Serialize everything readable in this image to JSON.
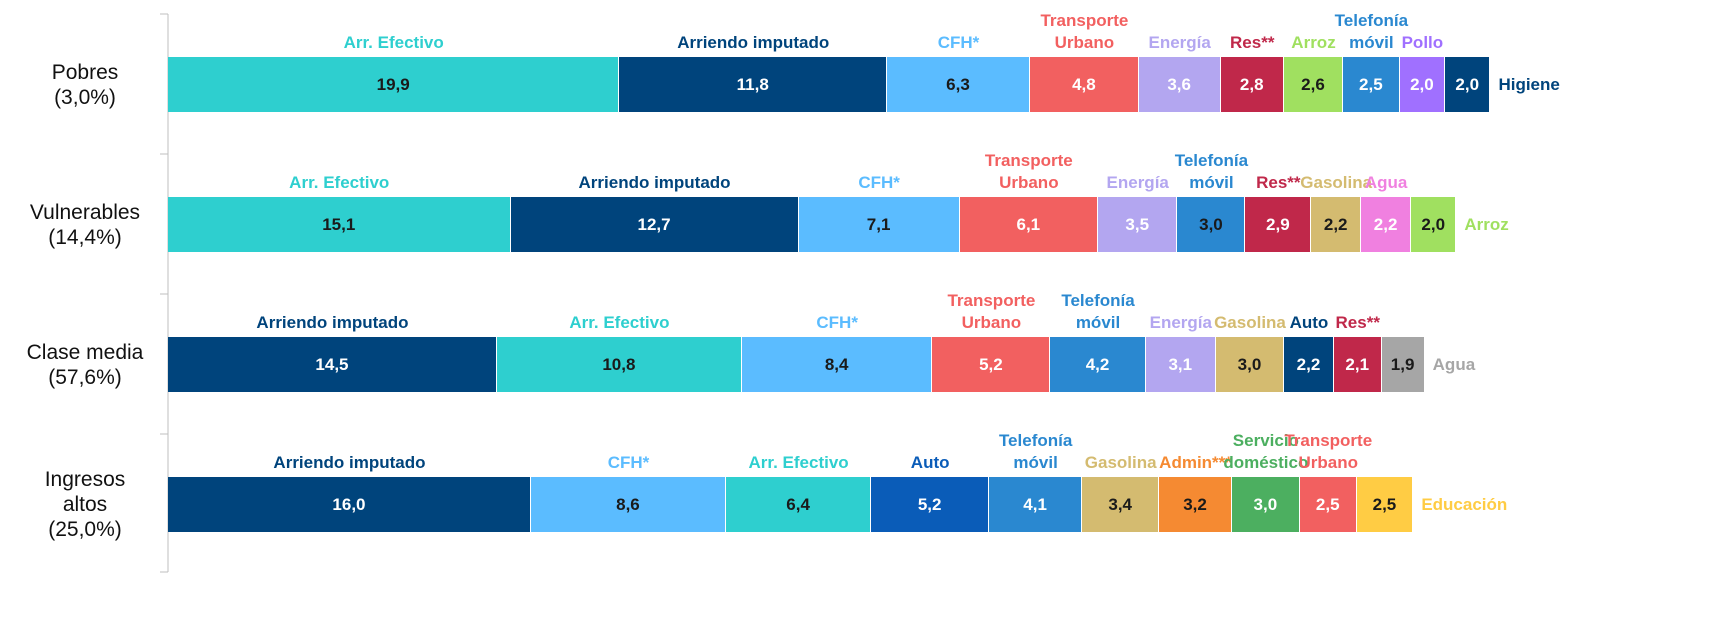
{
  "chart_data": {
    "type": "stacked-bar-horizontal",
    "xlim": [
      0,
      60
    ],
    "rows": [
      {
        "label": [
          "Pobres",
          "(3,0%)"
        ],
        "segments": [
          {
            "name": "Arr. Efectivo",
            "color": "#2ecfcf",
            "text_color": "#1a1a1a",
            "value": 19.9,
            "value_label": "19,9"
          },
          {
            "name": "Arriendo imputado",
            "color": "#00447c",
            "text_color": "#ffffff",
            "value": 11.8,
            "value_label": "11,8"
          },
          {
            "name": "CFH*",
            "color": "#5bbcff",
            "text_color": "#1a1a1a",
            "value": 6.3,
            "value_label": "6,3"
          },
          {
            "name": "Transporte\nUrbano",
            "color": "#f26060",
            "text_color": "#ffffff",
            "value": 4.8,
            "value_label": "4,8"
          },
          {
            "name": "Energía",
            "color": "#b3a6f0",
            "text_color": "#ffffff",
            "value": 3.6,
            "value_label": "3,6"
          },
          {
            "name": "Res**",
            "color": "#c0284a",
            "text_color": "#ffffff",
            "value": 2.8,
            "value_label": "2,8"
          },
          {
            "name": "Arroz",
            "color": "#a0e060",
            "text_color": "#1a1a1a",
            "value": 2.6,
            "value_label": "2,6"
          },
          {
            "name": "Telefonía\nmóvil",
            "color": "#2a88d0",
            "text_color": "#ffffff",
            "value": 2.5,
            "value_label": "2,5"
          },
          {
            "name": "Pollo",
            "color": "#a070ff",
            "text_color": "#ffffff",
            "value": 2.0,
            "value_label": "2,0"
          },
          {
            "name": "Higiene",
            "color": "#00447c",
            "text_color": "#ffffff",
            "value": 2.0,
            "value_label": "2,0"
          }
        ]
      },
      {
        "label": [
          "Vulnerables",
          "(14,4%)"
        ],
        "segments": [
          {
            "name": "Arr. Efectivo",
            "color": "#2ecfcf",
            "text_color": "#1a1a1a",
            "value": 15.1,
            "value_label": "15,1"
          },
          {
            "name": "Arriendo imputado",
            "color": "#00447c",
            "text_color": "#ffffff",
            "value": 12.7,
            "value_label": "12,7"
          },
          {
            "name": "CFH*",
            "color": "#5bbcff",
            "text_color": "#1a1a1a",
            "value": 7.1,
            "value_label": "7,1"
          },
          {
            "name": "Transporte\nUrbano",
            "color": "#f26060",
            "text_color": "#ffffff",
            "value": 6.1,
            "value_label": "6,1"
          },
          {
            "name": "Energía",
            "color": "#b3a6f0",
            "text_color": "#ffffff",
            "value": 3.5,
            "value_label": "3,5"
          },
          {
            "name": "Telefonía\nmóvil",
            "color": "#2a88d0",
            "text_color": "#1a1a1a",
            "value": 3.0,
            "value_label": "3,0"
          },
          {
            "name": "Res**",
            "color": "#c0284a",
            "text_color": "#ffffff",
            "value": 2.9,
            "value_label": "2,9"
          },
          {
            "name": "Gasolina",
            "color": "#d4bb70",
            "text_color": "#1a1a1a",
            "value": 2.2,
            "value_label": "2,2"
          },
          {
            "name": "Agua",
            "color": "#f080e0",
            "text_color": "#ffffff",
            "value": 2.2,
            "value_label": "2,2"
          },
          {
            "name": "Arroz",
            "color": "#a0e060",
            "text_color": "#1a1a1a",
            "value": 2.0,
            "value_label": "2,0"
          }
        ]
      },
      {
        "label": [
          "Clase media",
          "(57,6%)"
        ],
        "segments": [
          {
            "name": "Arriendo imputado",
            "color": "#00447c",
            "text_color": "#ffffff",
            "value": 14.5,
            "value_label": "14,5"
          },
          {
            "name": "Arr. Efectivo",
            "color": "#2ecfcf",
            "text_color": "#1a1a1a",
            "value": 10.8,
            "value_label": "10,8"
          },
          {
            "name": "CFH*",
            "color": "#5bbcff",
            "text_color": "#1a1a1a",
            "value": 8.4,
            "value_label": "8,4"
          },
          {
            "name": "Transporte\nUrbano",
            "color": "#f26060",
            "text_color": "#ffffff",
            "value": 5.2,
            "value_label": "5,2"
          },
          {
            "name": "Telefonía\nmóvil",
            "color": "#2a88d0",
            "text_color": "#ffffff",
            "value": 4.2,
            "value_label": "4,2"
          },
          {
            "name": "Energía",
            "color": "#b3a6f0",
            "text_color": "#ffffff",
            "value": 3.1,
            "value_label": "3,1"
          },
          {
            "name": "Gasolina",
            "color": "#d4bb70",
            "text_color": "#1a1a1a",
            "value": 3.0,
            "value_label": "3,0"
          },
          {
            "name": "Auto",
            "color": "#00447c",
            "text_color": "#ffffff",
            "value": 2.2,
            "value_label": "2,2"
          },
          {
            "name": "Res**",
            "color": "#c0284a",
            "text_color": "#ffffff",
            "value": 2.1,
            "value_label": "2,1"
          },
          {
            "name": "Agua",
            "color": "#a6a6a6",
            "text_color": "#1a1a1a",
            "value": 1.9,
            "value_label": "1,9"
          }
        ]
      },
      {
        "label": [
          "Ingresos",
          "altos",
          "(25,0%)"
        ],
        "segments": [
          {
            "name": "Arriendo imputado",
            "color": "#00447c",
            "text_color": "#ffffff",
            "value": 16.0,
            "value_label": "16,0"
          },
          {
            "name": "CFH*",
            "color": "#5bbcff",
            "text_color": "#1a1a1a",
            "value": 8.6,
            "value_label": "8,6"
          },
          {
            "name": "Arr. Efectivo",
            "color": "#2ecfcf",
            "text_color": "#1a1a1a",
            "value": 6.4,
            "value_label": "6,4"
          },
          {
            "name": "Auto",
            "color": "#0a5cb8",
            "text_color": "#ffffff",
            "value": 5.2,
            "value_label": "5,2"
          },
          {
            "name": "Telefonía\nmóvil",
            "color": "#2a88d0",
            "text_color": "#ffffff",
            "value": 4.1,
            "value_label": "4,1"
          },
          {
            "name": "Gasolina",
            "color": "#d4bb70",
            "text_color": "#1a1a1a",
            "value": 3.4,
            "value_label": "3,4"
          },
          {
            "name": "Admin***",
            "color": "#f58a32",
            "text_color": "#1a1a1a",
            "value": 3.2,
            "value_label": "3,2"
          },
          {
            "name": "Servicio\ndoméstico",
            "color": "#4caf60",
            "text_color": "#ffffff",
            "value": 3.0,
            "value_label": "3,0"
          },
          {
            "name": "Transporte\nUrbano",
            "color": "#f26060",
            "text_color": "#ffffff",
            "value": 2.5,
            "value_label": "2,5"
          },
          {
            "name": "Educación",
            "color": "#ffcc44",
            "text_color": "#1a1a1a",
            "value": 2.5,
            "value_label": "2,5"
          }
        ]
      }
    ]
  }
}
